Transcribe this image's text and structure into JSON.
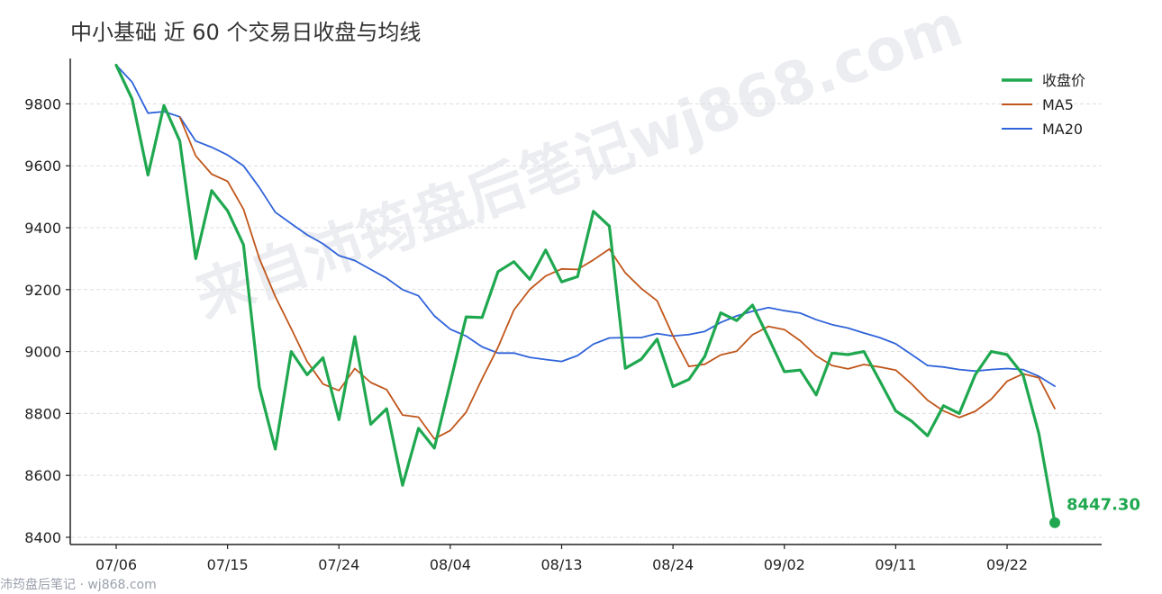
{
  "chart_data": {
    "type": "line",
    "title": "中小基础 近 60 个交易日收盘与均线",
    "x": [
      "07/06",
      "07/07",
      "07/08",
      "07/09",
      "07/10",
      "07/13",
      "07/14",
      "07/15",
      "07/16",
      "07/17",
      "07/20",
      "07/21",
      "07/22",
      "07/23",
      "07/24",
      "07/27",
      "07/28",
      "07/29",
      "07/30",
      "07/31",
      "08/03",
      "08/04",
      "08/05",
      "08/06",
      "08/07",
      "08/10",
      "08/11",
      "08/12",
      "08/13",
      "08/14",
      "08/17",
      "08/18",
      "08/19",
      "08/20",
      "08/21",
      "08/24",
      "08/25",
      "08/26",
      "08/27",
      "08/28",
      "08/31",
      "09/01",
      "09/02",
      "09/03",
      "09/04",
      "09/07",
      "09/08",
      "09/09",
      "09/10",
      "09/11",
      "09/14",
      "09/15",
      "09/16",
      "09/17",
      "09/18",
      "09/21",
      "09/22",
      "09/23",
      "09/24",
      "09/25"
    ],
    "x_ticks": [
      "07/06",
      "07/15",
      "07/24",
      "08/04",
      "08/13",
      "08/24",
      "09/02",
      "09/11",
      "09/22"
    ],
    "ylim": [
      8400,
      9900
    ],
    "y_ticks": [
      8400,
      8600,
      8800,
      9000,
      9200,
      9400,
      9600,
      9800
    ],
    "grid": "horizontal-dashed",
    "legend_position": "top-right",
    "series": [
      {
        "name": "收盘价",
        "color": "#1fa84f",
        "values": [
          9925,
          9815,
          9570,
          9795,
          9680,
          9300,
          9520,
          9455,
          9345,
          8885,
          8685,
          9000,
          8925,
          8980,
          8780,
          9048,
          8765,
          8815,
          8568,
          8752,
          8688,
          8900,
          9112,
          9110,
          9258,
          9290,
          9233,
          9328,
          9225,
          9242,
          9453,
          9405,
          8946,
          8975,
          9040,
          8887,
          8910,
          8985,
          9125,
          9100,
          9150,
          9045,
          8935,
          8940,
          8860,
          8995,
          8990,
          9000,
          8905,
          8808,
          8775,
          8728,
          8825,
          8800,
          8925,
          9000,
          8990,
          8925,
          8735,
          8447.3
        ]
      },
      {
        "name": "MA5",
        "color": "#c0561b",
        "values": [
          null,
          null,
          null,
          null,
          9757,
          9632,
          9573,
          9550,
          9460,
          9301,
          9178,
          9074,
          8968,
          8895,
          8874,
          8945,
          8900,
          8877,
          8795,
          8788,
          8718,
          8745,
          8804,
          8912,
          9014,
          9134,
          9201,
          9244,
          9267,
          9265,
          9296,
          9331,
          9254,
          9204,
          9164,
          9051,
          8952,
          8959,
          8989,
          9001,
          9054,
          9081,
          9071,
          9035,
          8986,
          8955,
          8944,
          8958,
          8950,
          8940,
          8895,
          8843,
          8808,
          8787,
          8807,
          8846,
          8904,
          8928,
          8915,
          8816
        ]
      },
      {
        "name": "MA20",
        "color": "#2f63d9",
        "values": [
          9925,
          9870,
          9770,
          9775,
          9758,
          9680,
          9660,
          9635,
          9600,
          9530,
          9450,
          9413,
          9377,
          9348,
          9310,
          9294,
          9265,
          9237,
          9200,
          9180,
          9115,
          9072,
          9050,
          9015,
          8995,
          8995,
          8981,
          8974,
          8968,
          8987,
          9024,
          9044,
          9045,
          9045,
          9058,
          9050,
          9055,
          9065,
          9094,
          9115,
          9130,
          9142,
          9132,
          9124,
          9103,
          9087,
          9076,
          9060,
          9045,
          9025,
          8990,
          8955,
          8950,
          8942,
          8937,
          8942,
          8945,
          8942,
          8920,
          8888
        ]
      }
    ],
    "end_value_label": "8447.30",
    "watermark": "来自沛筠盘后笔记wj868.com",
    "footer": "沛筠盘后笔记 · wj868.com"
  }
}
